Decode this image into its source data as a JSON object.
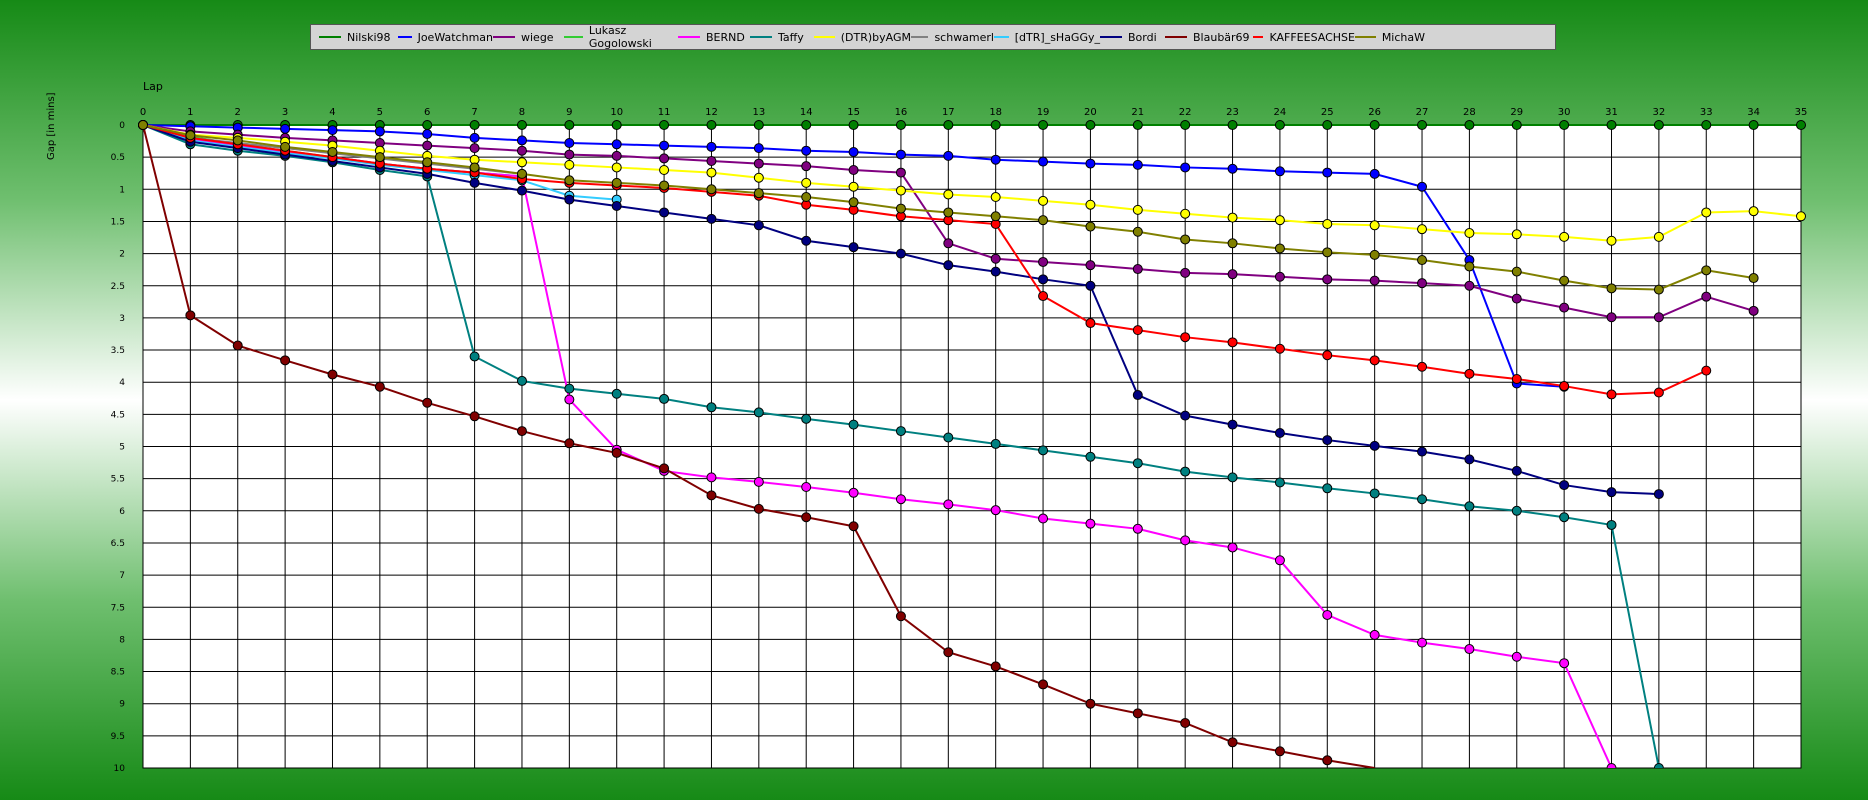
{
  "chart_data": {
    "type": "line",
    "xlabel": "Lap",
    "ylabel": "Gap [in mins]",
    "xlim": [
      0,
      35
    ],
    "ylim": [
      0,
      10
    ],
    "y_inverted": true,
    "x_ticks": [
      0,
      1,
      2,
      3,
      4,
      5,
      6,
      7,
      8,
      9,
      10,
      11,
      12,
      13,
      14,
      15,
      16,
      17,
      18,
      19,
      20,
      21,
      22,
      23,
      24,
      25,
      26,
      27,
      28,
      29,
      30,
      31,
      32,
      33,
      34,
      35
    ],
    "y_ticks": [
      "0",
      "0.5",
      "1",
      "1.5",
      "2",
      "2.5",
      "3",
      "3.5",
      "4",
      "4.5",
      "5",
      "5.5",
      "6",
      "6.5",
      "7",
      "7.5",
      "8",
      "8.5",
      "9",
      "9.5",
      "10"
    ],
    "grid": true,
    "legend_position": "top-center",
    "series": [
      {
        "name": "Nilski98",
        "color": "#008000",
        "values": [
          0,
          0,
          0,
          0,
          0,
          0,
          0,
          0,
          0,
          0,
          0,
          0,
          0,
          0,
          0,
          0,
          0,
          0,
          0,
          0,
          0,
          0,
          0,
          0,
          0,
          0,
          0,
          0,
          0,
          0,
          0,
          0,
          0,
          0,
          0,
          0
        ]
      },
      {
        "name": "JoeWatchman",
        "color": "#0000ff",
        "values": [
          0,
          0.02,
          0.04,
          0.06,
          0.08,
          0.1,
          0.14,
          0.2,
          0.24,
          0.28,
          0.3,
          0.32,
          0.34,
          0.36,
          0.4,
          0.42,
          0.46,
          0.48,
          0.54,
          0.57,
          0.6,
          0.62,
          0.66,
          0.68,
          0.72,
          0.74,
          0.76,
          0.96,
          2.1,
          4.02,
          4.07
        ]
      },
      {
        "name": "wiege",
        "color": "#800080",
        "values": [
          0,
          0.1,
          0.15,
          0.2,
          0.24,
          0.28,
          0.32,
          0.36,
          0.4,
          0.46,
          0.48,
          0.52,
          0.56,
          0.6,
          0.64,
          0.7,
          0.74,
          1.84,
          2.08,
          2.13,
          2.18,
          2.24,
          2.3,
          2.32,
          2.36,
          2.4,
          2.42,
          2.46,
          2.5,
          2.7,
          2.84,
          2.99,
          2.99,
          2.67,
          2.89
        ]
      },
      {
        "name": "Lukasz Gogolowski",
        "color": "#33cc33",
        "values": [
          0,
          0.18,
          0.3,
          0.4,
          0.5,
          0.6,
          0.68,
          0.74,
          0.8
        ]
      },
      {
        "name": "BERND",
        "color": "#ff00ff",
        "values": [
          0,
          0.22,
          0.32,
          0.42,
          0.5,
          0.6,
          0.68,
          0.74,
          0.8,
          4.27,
          5.05,
          5.38,
          5.48,
          5.55,
          5.63,
          5.72,
          5.82,
          5.9,
          5.99,
          6.12,
          6.2,
          6.28,
          6.46,
          6.57,
          6.77,
          7.62,
          7.93,
          8.05,
          8.15,
          8.27,
          8.37,
          10.0
        ]
      },
      {
        "name": "Taffy",
        "color": "#008080",
        "values": [
          0,
          0.3,
          0.4,
          0.48,
          0.58,
          0.7,
          0.8,
          3.6,
          3.98,
          4.1,
          4.18,
          4.26,
          4.39,
          4.47,
          4.57,
          4.66,
          4.76,
          4.86,
          4.96,
          5.06,
          5.16,
          5.26,
          5.39,
          5.48,
          5.56,
          5.65,
          5.73,
          5.82,
          5.93,
          6.0,
          6.1,
          6.22,
          10.0
        ]
      },
      {
        "name": "(DTR)byAGM",
        "color": "#ffff00",
        "values": [
          0,
          0.15,
          0.2,
          0.26,
          0.32,
          0.4,
          0.48,
          0.54,
          0.58,
          0.62,
          0.66,
          0.7,
          0.74,
          0.82,
          0.9,
          0.96,
          1.02,
          1.08,
          1.12,
          1.18,
          1.24,
          1.32,
          1.38,
          1.44,
          1.48,
          1.54,
          1.56,
          1.62,
          1.68,
          1.7,
          1.74,
          1.8,
          1.74,
          1.36,
          1.34,
          1.42
        ]
      },
      {
        "name": "schwamerl",
        "color": "#808080",
        "values": [
          0,
          0.2,
          0.28,
          0.36,
          0.44,
          0.52,
          0.6,
          0.68,
          0.76
        ]
      },
      {
        "name": "[dTR]_sHaGGy_",
        "color": "#33ccff",
        "values": [
          0,
          0.24,
          0.34,
          0.44,
          0.52,
          0.62,
          0.7,
          0.78,
          0.86,
          1.1,
          1.16
        ]
      },
      {
        "name": "Bordi",
        "color": "#000080",
        "values": [
          0,
          0.26,
          0.36,
          0.46,
          0.56,
          0.66,
          0.76,
          0.9,
          1.02,
          1.16,
          1.26,
          1.36,
          1.46,
          1.56,
          1.8,
          1.9,
          2.0,
          2.18,
          2.28,
          2.4,
          2.5,
          4.2,
          4.52,
          4.66,
          4.79,
          4.9,
          4.99,
          5.08,
          5.2,
          5.38,
          5.6,
          5.71,
          5.74
        ]
      },
      {
        "name": "Blaubär69",
        "color": "#800000",
        "values": [
          0,
          2.96,
          3.43,
          3.66,
          3.88,
          4.07,
          4.32,
          4.53,
          4.76,
          4.95,
          5.1,
          5.34,
          5.76,
          5.97,
          6.1,
          6.24,
          7.64,
          8.2,
          8.42,
          8.7,
          9.0,
          9.15,
          9.3,
          9.6,
          9.74,
          9.88,
          10.2
        ]
      },
      {
        "name": "KAFFEESACHSE",
        "color": "#ff0000",
        "values": [
          0,
          0.2,
          0.3,
          0.4,
          0.5,
          0.6,
          0.68,
          0.74,
          0.84,
          0.9,
          0.94,
          0.98,
          1.04,
          1.1,
          1.24,
          1.32,
          1.42,
          1.48,
          1.54,
          2.66,
          3.08,
          3.19,
          3.3,
          3.38,
          3.48,
          3.58,
          3.66,
          3.76,
          3.87,
          3.95,
          4.06,
          4.19,
          4.16,
          3.82
        ]
      },
      {
        "name": "MichaW",
        "color": "#808000",
        "values": [
          0,
          0.16,
          0.24,
          0.34,
          0.42,
          0.5,
          0.58,
          0.66,
          0.76,
          0.86,
          0.9,
          0.94,
          1.0,
          1.06,
          1.12,
          1.2,
          1.3,
          1.36,
          1.42,
          1.48,
          1.58,
          1.66,
          1.78,
          1.84,
          1.92,
          1.98,
          2.02,
          2.1,
          2.2,
          2.28,
          2.42,
          2.54,
          2.56,
          2.26,
          2.38
        ]
      }
    ]
  }
}
